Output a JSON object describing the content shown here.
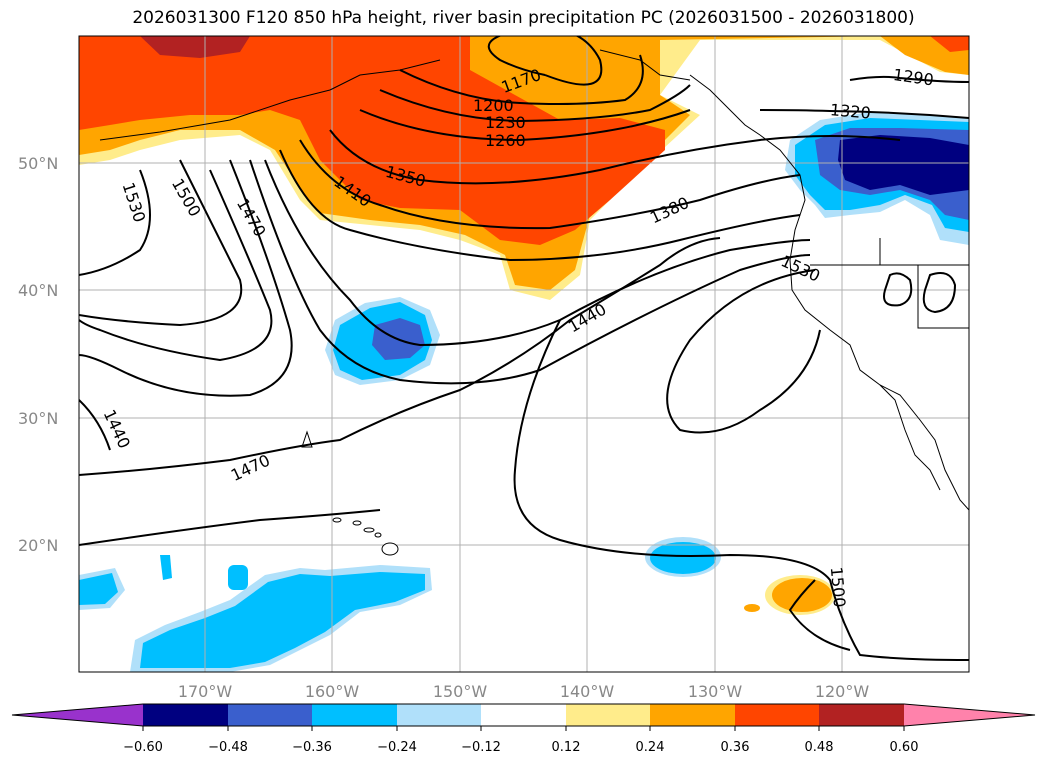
{
  "title": "2026031300 F120 850 hPa height, river basin precipitation PC (2026031500 - 2026031800)",
  "map": {
    "lat_labels": [
      "50°N",
      "40°N",
      "30°N",
      "20°N"
    ],
    "lon_labels": [
      "170°W",
      "160°W",
      "150°W",
      "140°W",
      "130°W",
      "120°W"
    ],
    "contour_labels": [
      "1170",
      "1200",
      "1230",
      "1260",
      "1290",
      "1320",
      "1350",
      "1380",
      "1410",
      "1440",
      "1470",
      "1500",
      "1530",
      "1530",
      "1500",
      "1470",
      "1440",
      "1440",
      "1500"
    ],
    "contour_interval": 30,
    "colors": {
      "orange_red": "#ff4500",
      "orange": "#ffa500",
      "dark_red": "#b22222",
      "navy": "#000080",
      "royal_blue": "#3a5fcd",
      "deep_sky_blue": "#00bfff",
      "light_blue": "#b0e0fa",
      "light_yellow": "#ffec8b"
    }
  },
  "colorbar": {
    "ticks": [
      "−0.60",
      "−0.48",
      "−0.36",
      "−0.24",
      "−0.12",
      "0.12",
      "0.24",
      "0.36",
      "0.48",
      "0.60"
    ],
    "colors": [
      "#9932cc",
      "#000080",
      "#3a5fcd",
      "#00bfff",
      "#b0e0fa",
      "#ffffff",
      "#ffec8b",
      "#ffa500",
      "#ff4500",
      "#b22222",
      "#ff82ab"
    ]
  }
}
